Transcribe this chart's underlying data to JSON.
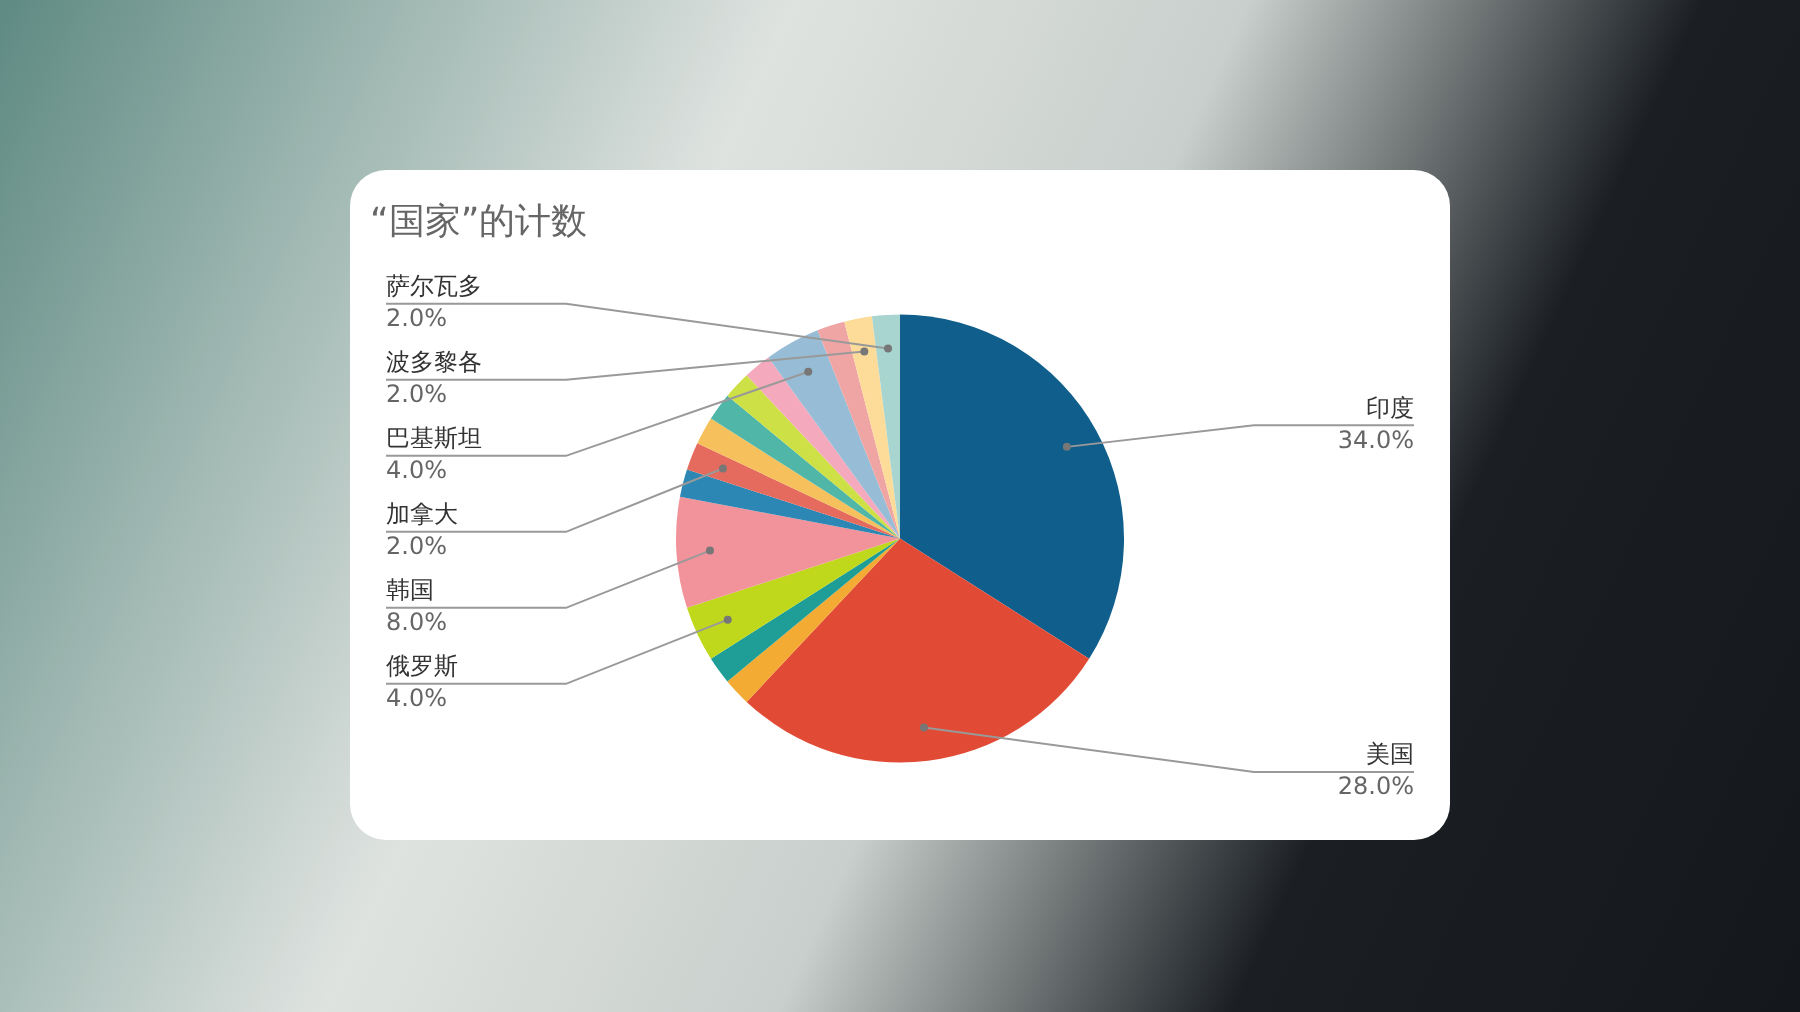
{
  "chart_data": {
    "type": "pie",
    "title": "“国家”的计数",
    "categories": [
      "印度",
      "美国",
      null,
      null,
      "俄罗斯",
      "韩国",
      null,
      "加拿大",
      null,
      null,
      null,
      null,
      "巴基斯坦",
      null,
      "波多黎各",
      "萨尔瓦多"
    ],
    "values": [
      34,
      28,
      2,
      2,
      4,
      8,
      2,
      2,
      2,
      2,
      2,
      2,
      4,
      2,
      2,
      2
    ],
    "value_labels": [
      "34.0%",
      "28.0%",
      null,
      null,
      "4.0%",
      "8.0%",
      null,
      "2.0%",
      null,
      null,
      null,
      null,
      "4.0%",
      null,
      "2.0%",
      "2.0%"
    ],
    "colors": [
      "#0f5e8c",
      "#e14b36",
      "#f4ab33",
      "#1e9e96",
      "#bfd81c",
      "#f2929a",
      "#2c87b4",
      "#e56b5e",
      "#f6c15c",
      "#4fb6a8",
      "#cde046",
      "#f5a9bd",
      "#96bcd6",
      "#f0a5a5",
      "#fddc9a",
      "#a8d5cf"
    ],
    "legend": false
  }
}
